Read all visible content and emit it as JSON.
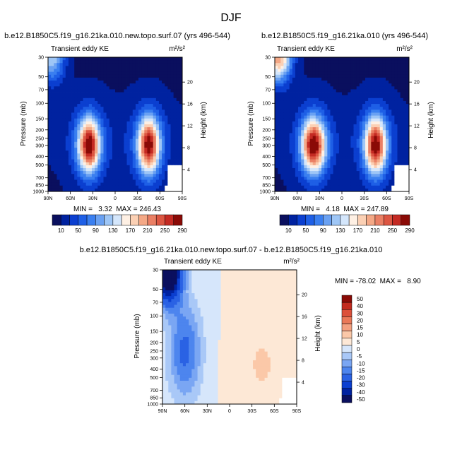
{
  "suptitle": "DJF",
  "colors": {
    "ke_levels": [
      "#0a0f5e",
      "#0022a0",
      "#0b3fd0",
      "#1e5fe6",
      "#3a7ff0",
      "#6aa1f2",
      "#9ec6f6",
      "#d4e6fb",
      "#fef0e4",
      "#fbd0b4",
      "#f4a886",
      "#ea7f64",
      "#dc5642",
      "#c42a23",
      "#8a0a06"
    ],
    "diff_levels": [
      "#0a0f5e",
      "#0022a0",
      "#0b3fd0",
      "#2a62e4",
      "#4d85ee",
      "#7aa6f3",
      "#a9c8f7",
      "#d6e6fb",
      "#fde8d6",
      "#fbc8a8",
      "#f4a080",
      "#ea7858",
      "#dc503a",
      "#c22a1e",
      "#8a0a06"
    ]
  },
  "chart_data": [
    {
      "type": "heatmap",
      "title": "b.e12.B1850C5.f19_g16.21ka.010.new.topo.surf.07 (yrs 496-544)",
      "subtitle_left": "Transient eddy KE",
      "units": "m²/s²",
      "xticks": [
        "90N",
        "60N",
        "30N",
        "0",
        "30S",
        "60S",
        "90S"
      ],
      "x_values": [
        90,
        60,
        30,
        0,
        -30,
        -60,
        -90
      ],
      "yticks": [
        "30",
        "50",
        "70",
        "100",
        "150",
        "200",
        "250",
        "300",
        "400",
        "500",
        "700",
        "850",
        "1000"
      ],
      "y_pressure": [
        30,
        50,
        70,
        100,
        150,
        200,
        250,
        300,
        400,
        500,
        700,
        850,
        1000
      ],
      "ylabel": "Pressure (mb)",
      "y2label": "Height (km)",
      "y2ticks": [
        "20",
        "16",
        "12",
        "8",
        "4"
      ],
      "y2_km": [
        20,
        16,
        12,
        8,
        4
      ],
      "stats": "MIN =   3.32  MAX = 246.43",
      "cb_labels": [
        "10",
        "50",
        "90",
        "130",
        "170",
        "210",
        "250",
        "290"
      ],
      "cb_levels": [
        10,
        30,
        50,
        70,
        90,
        110,
        130,
        150,
        170,
        190,
        210,
        230,
        250,
        270,
        290
      ],
      "jets": [
        {
          "lat": 35,
          "p": 300,
          "peak": 246,
          "sx": 10,
          "sy": 0.48
        },
        {
          "lat": -45,
          "p": 300,
          "peak": 240,
          "sx": 10,
          "sy": 0.5
        }
      ],
      "strat_peak": 120
    },
    {
      "type": "heatmap",
      "title": "b.e12.B1850C5.f19_g16.21ka.010 (yrs 496-544)",
      "subtitle_left": "Transient eddy KE",
      "units": "m²/s²",
      "xticks": [
        "90N",
        "60N",
        "30N",
        "0",
        "30S",
        "60S",
        "90S"
      ],
      "x_values": [
        90,
        60,
        30,
        0,
        -30,
        -60,
        -90
      ],
      "yticks": [
        "30",
        "50",
        "70",
        "100",
        "150",
        "200",
        "250",
        "300",
        "400",
        "500",
        "700",
        "850",
        "1000"
      ],
      "y_pressure": [
        30,
        50,
        70,
        100,
        150,
        200,
        250,
        300,
        400,
        500,
        700,
        850,
        1000
      ],
      "ylabel": "Pressure (mb)",
      "y2label": "Height (km)",
      "y2ticks": [
        "20",
        "16",
        "12",
        "8",
        "4"
      ],
      "y2_km": [
        20,
        16,
        12,
        8,
        4
      ],
      "stats": "MIN =   4.18  MAX = 247.89",
      "cb_labels": [
        "10",
        "50",
        "90",
        "130",
        "170",
        "210",
        "250",
        "290"
      ],
      "cb_levels": [
        10,
        30,
        50,
        70,
        90,
        110,
        130,
        150,
        170,
        190,
        210,
        230,
        250,
        270,
        290
      ],
      "jets": [
        {
          "lat": 38,
          "p": 300,
          "peak": 248,
          "sx": 11,
          "sy": 0.48
        },
        {
          "lat": -45,
          "p": 300,
          "peak": 242,
          "sx": 10,
          "sy": 0.5
        }
      ],
      "strat_peak": 200
    },
    {
      "type": "heatmap",
      "title": "b.e12.B1850C5.f19_g16.21ka.010.new.topo.surf.07 - b.e12.B1850C5.f19_g16.21ka.010",
      "subtitle_left": "Transient eddy KE",
      "units": "m²/s²",
      "xticks": [
        "90N",
        "60N",
        "30N",
        "0",
        "30S",
        "60S",
        "90S"
      ],
      "x_values": [
        90,
        60,
        30,
        0,
        -30,
        -60,
        -90
      ],
      "yticks": [
        "30",
        "50",
        "70",
        "100",
        "150",
        "200",
        "250",
        "300",
        "400",
        "500",
        "700",
        "850",
        "1000"
      ],
      "y_pressure": [
        30,
        50,
        70,
        100,
        150,
        200,
        250,
        300,
        400,
        500,
        700,
        850,
        1000
      ],
      "ylabel": "Pressure (mb)",
      "y2label": "Height (km)",
      "y2ticks": [
        "20",
        "16",
        "12",
        "8",
        "4"
      ],
      "y2_km": [
        20,
        16,
        12,
        8,
        4
      ],
      "stats": "MIN = -78.02  MAX =   8.90",
      "cb_labels": [
        "50",
        "40",
        "30",
        "20",
        "15",
        "10",
        "5",
        "0",
        "-5",
        "-10",
        "-15",
        "-20",
        "-30",
        "-40",
        "-50"
      ],
      "cb_levels": [
        -50,
        -40,
        -30,
        -20,
        -15,
        -10,
        -5,
        0,
        5,
        10,
        15,
        20,
        30,
        40,
        50
      ]
    }
  ]
}
